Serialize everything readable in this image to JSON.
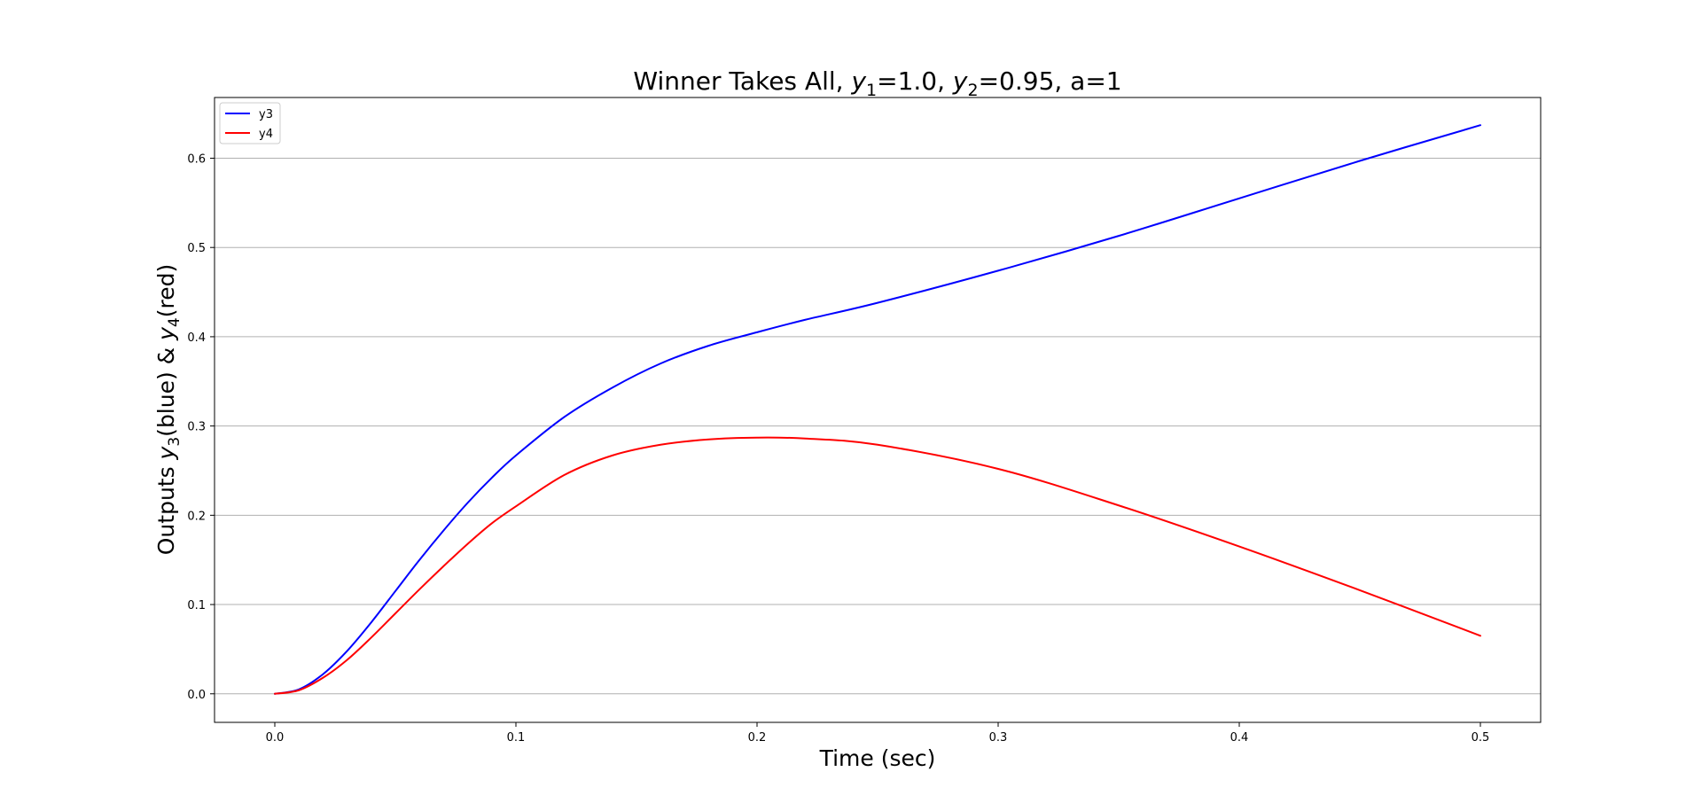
{
  "chart_data": {
    "type": "line",
    "title_parts": {
      "prefix": "Winner Takes All, ",
      "y1_symbol": "y",
      "y1_sub": "1",
      "y1_value": "=1.0, ",
      "y2_symbol": "y",
      "y2_sub": "2",
      "y2_value": "=0.95, a=1"
    },
    "xlabel": "Time (sec)",
    "ylabel_parts": {
      "prefix": "Outputs ",
      "y3_symbol": "y",
      "y3_sub": "3",
      "mid": "(blue) & ",
      "y4_symbol": "y",
      "y4_sub": "4",
      "suffix": "(red)"
    },
    "xlim": [
      -0.025,
      0.525
    ],
    "ylim": [
      -0.032,
      0.668
    ],
    "x_ticks": [
      0.0,
      0.1,
      0.2,
      0.3,
      0.4,
      0.5
    ],
    "x_tick_labels": [
      "0.0",
      "0.1",
      "0.2",
      "0.3",
      "0.4",
      "0.5"
    ],
    "y_ticks": [
      0.0,
      0.1,
      0.2,
      0.3,
      0.4,
      0.5,
      0.6
    ],
    "y_tick_labels": [
      "0.0",
      "0.1",
      "0.2",
      "0.3",
      "0.4",
      "0.5",
      "0.6"
    ],
    "grid": "horizontal",
    "legend_position": "top-left",
    "x": [
      0.0,
      0.01,
      0.02,
      0.03,
      0.04,
      0.05,
      0.06,
      0.07,
      0.08,
      0.09,
      0.1,
      0.12,
      0.14,
      0.16,
      0.18,
      0.2,
      0.22,
      0.25,
      0.3,
      0.35,
      0.4,
      0.45,
      0.5
    ],
    "series": [
      {
        "name": "y3",
        "color": "#0000ff",
        "values": [
          0.0,
          0.005,
          0.022,
          0.048,
          0.08,
          0.115,
          0.15,
          0.183,
          0.214,
          0.242,
          0.267,
          0.31,
          0.343,
          0.37,
          0.39,
          0.405,
          0.419,
          0.438,
          0.474,
          0.513,
          0.555,
          0.597,
          0.637
        ]
      },
      {
        "name": "y4",
        "color": "#ff0000",
        "values": [
          0.0,
          0.004,
          0.018,
          0.038,
          0.063,
          0.09,
          0.117,
          0.143,
          0.168,
          0.191,
          0.21,
          0.245,
          0.267,
          0.279,
          0.285,
          0.287,
          0.286,
          0.279,
          0.252,
          0.211,
          0.165,
          0.116,
          0.065
        ]
      }
    ]
  }
}
